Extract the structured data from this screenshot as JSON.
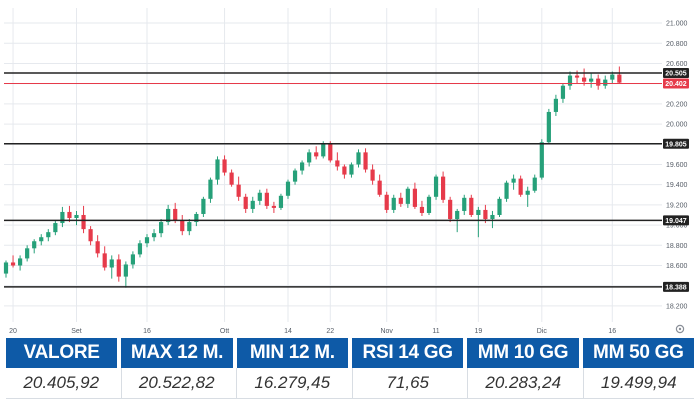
{
  "chart_data": {
    "type": "candlestick",
    "y_axis": {
      "position": "right",
      "range": [
        18.1,
        21.05
      ],
      "tick_labels": [
        "21.000",
        "20.800",
        "20.600",
        "20.400",
        "20.200",
        "20.000",
        "19.800",
        "19.600",
        "19.400",
        "19.200",
        "19.000",
        "18.800",
        "18.600",
        "18.400",
        "18.200"
      ],
      "tick_values": [
        21.0,
        20.8,
        20.6,
        20.4,
        20.2,
        20.0,
        19.8,
        19.6,
        19.4,
        19.2,
        19.0,
        18.8,
        18.6,
        18.4,
        18.2
      ]
    },
    "x_axis": {
      "tick_labels": [
        {
          "label": "20",
          "index": 1
        },
        {
          "label": "Set",
          "index": 10
        },
        {
          "label": "16",
          "index": 20
        },
        {
          "label": "Ott",
          "index": 31
        },
        {
          "label": "14",
          "index": 40
        },
        {
          "label": "22",
          "index": 46
        },
        {
          "label": "Nov",
          "index": 54
        },
        {
          "label": "11",
          "index": 61
        },
        {
          "label": "19",
          "index": 67
        },
        {
          "label": "Dic",
          "index": 76
        },
        {
          "label": "16",
          "index": 86
        }
      ]
    },
    "levels": [
      {
        "label": "20.505",
        "value": 20.505,
        "color": "#222222"
      },
      {
        "label": "20.402",
        "value": 20.402,
        "color": "#e63a4a"
      },
      {
        "label": "19.805",
        "value": 19.805,
        "color": "#222222"
      },
      {
        "label": "19.047",
        "value": 19.047,
        "color": "#222222"
      },
      {
        "label": "18.388",
        "value": 18.388,
        "color": "#222222"
      }
    ],
    "colors": {
      "up": "#26a079",
      "down": "#e63a4a",
      "line": "#222222",
      "grid": "#e6e9ee"
    },
    "candles": [
      [
        18.52,
        18.65,
        18.48,
        18.63
      ],
      [
        18.63,
        18.7,
        18.58,
        18.6
      ],
      [
        18.6,
        18.7,
        18.55,
        18.67
      ],
      [
        18.67,
        18.8,
        18.64,
        18.77
      ],
      [
        18.77,
        18.86,
        18.72,
        18.84
      ],
      [
        18.84,
        18.91,
        18.8,
        18.88
      ],
      [
        18.88,
        18.96,
        18.84,
        18.93
      ],
      [
        18.93,
        19.05,
        18.9,
        19.02
      ],
      [
        19.02,
        19.18,
        18.98,
        19.13
      ],
      [
        19.13,
        19.19,
        19.03,
        19.07
      ],
      [
        19.07,
        19.14,
        19.0,
        19.1
      ],
      [
        19.1,
        19.19,
        18.92,
        18.96
      ],
      [
        18.96,
        18.99,
        18.8,
        18.84
      ],
      [
        18.84,
        18.9,
        18.68,
        18.72
      ],
      [
        18.72,
        18.79,
        18.55,
        18.58
      ],
      [
        18.58,
        18.7,
        18.47,
        18.66
      ],
      [
        18.66,
        18.71,
        18.44,
        18.49
      ],
      [
        18.49,
        18.64,
        18.38,
        18.61
      ],
      [
        18.61,
        18.74,
        18.57,
        18.71
      ],
      [
        18.71,
        18.85,
        18.68,
        18.82
      ],
      [
        18.82,
        18.91,
        18.78,
        18.88
      ],
      [
        18.88,
        18.96,
        18.84,
        18.92
      ],
      [
        18.92,
        19.06,
        18.88,
        19.03
      ],
      [
        19.03,
        19.2,
        19.0,
        19.16
      ],
      [
        19.16,
        19.22,
        19.02,
        19.05
      ],
      [
        19.05,
        19.1,
        18.9,
        18.94
      ],
      [
        18.94,
        19.06,
        18.9,
        19.03
      ],
      [
        19.03,
        19.13,
        18.99,
        19.11
      ],
      [
        19.11,
        19.28,
        19.08,
        19.26
      ],
      [
        19.26,
        19.47,
        19.22,
        19.45
      ],
      [
        19.45,
        19.68,
        19.4,
        19.65
      ],
      [
        19.65,
        19.69,
        19.49,
        19.52
      ],
      [
        19.52,
        19.55,
        19.38,
        19.4
      ],
      [
        19.4,
        19.48,
        19.24,
        19.28
      ],
      [
        19.28,
        19.31,
        19.12,
        19.16
      ],
      [
        19.16,
        19.28,
        19.12,
        19.24
      ],
      [
        19.24,
        19.35,
        19.2,
        19.32
      ],
      [
        19.32,
        19.36,
        19.16,
        19.19
      ],
      [
        19.19,
        19.23,
        19.12,
        19.17
      ],
      [
        19.17,
        19.31,
        19.15,
        19.29
      ],
      [
        19.29,
        19.45,
        19.26,
        19.43
      ],
      [
        19.43,
        19.56,
        19.4,
        19.54
      ],
      [
        19.54,
        19.64,
        19.5,
        19.62
      ],
      [
        19.62,
        19.75,
        19.58,
        19.72
      ],
      [
        19.72,
        19.78,
        19.65,
        19.68
      ],
      [
        19.68,
        19.83,
        19.66,
        19.8
      ],
      [
        19.8,
        19.83,
        19.62,
        19.64
      ],
      [
        19.64,
        19.72,
        19.54,
        19.58
      ],
      [
        19.58,
        19.6,
        19.46,
        19.5
      ],
      [
        19.5,
        19.62,
        19.47,
        19.6
      ],
      [
        19.6,
        19.75,
        19.57,
        19.72
      ],
      [
        19.72,
        19.76,
        19.52,
        19.55
      ],
      [
        19.55,
        19.6,
        19.4,
        19.44
      ],
      [
        19.44,
        19.5,
        19.28,
        19.3
      ],
      [
        19.3,
        19.33,
        19.12,
        19.15
      ],
      [
        19.15,
        19.3,
        19.12,
        19.27
      ],
      [
        19.27,
        19.32,
        19.18,
        19.21
      ],
      [
        19.21,
        19.38,
        19.17,
        19.36
      ],
      [
        19.36,
        19.42,
        19.16,
        19.18
      ],
      [
        19.18,
        19.24,
        19.09,
        19.12
      ],
      [
        19.12,
        19.3,
        19.1,
        19.28
      ],
      [
        19.28,
        19.5,
        19.25,
        19.48
      ],
      [
        19.48,
        19.53,
        19.22,
        19.25
      ],
      [
        19.25,
        19.28,
        19.03,
        19.06
      ],
      [
        19.06,
        19.16,
        18.93,
        19.14
      ],
      [
        19.14,
        19.3,
        19.1,
        19.27
      ],
      [
        19.27,
        19.3,
        19.08,
        19.1
      ],
      [
        19.1,
        19.18,
        18.88,
        19.15
      ],
      [
        19.15,
        19.2,
        19.02,
        19.06
      ],
      [
        19.06,
        19.14,
        18.97,
        19.1
      ],
      [
        19.1,
        19.28,
        19.08,
        19.26
      ],
      [
        19.26,
        19.44,
        19.23,
        19.42
      ],
      [
        19.42,
        19.5,
        19.35,
        19.46
      ],
      [
        19.46,
        19.49,
        19.28,
        19.3
      ],
      [
        19.3,
        19.38,
        19.18,
        19.34
      ],
      [
        19.34,
        19.5,
        19.32,
        19.47
      ],
      [
        19.47,
        19.85,
        19.45,
        19.82
      ],
      [
        19.82,
        20.15,
        19.8,
        20.12
      ],
      [
        20.12,
        20.29,
        20.08,
        20.25
      ],
      [
        20.25,
        20.4,
        20.21,
        20.38
      ],
      [
        20.38,
        20.52,
        20.34,
        20.48
      ],
      [
        20.48,
        20.53,
        20.4,
        20.46
      ],
      [
        20.46,
        20.55,
        20.38,
        20.42
      ],
      [
        20.42,
        20.5,
        20.36,
        20.45
      ],
      [
        20.45,
        20.49,
        20.34,
        20.38
      ],
      [
        20.38,
        20.48,
        20.35,
        20.44
      ],
      [
        20.44,
        20.52,
        20.4,
        20.49
      ],
      [
        20.49,
        20.57,
        20.4,
        20.41
      ]
    ]
  },
  "stats": {
    "headers": [
      "VALORE",
      "MAX 12 M.",
      "MIN 12 M.",
      "RSI 14 GG",
      "MM 10 GG",
      "MM 50 GG"
    ],
    "values": [
      "20.405,92",
      "20.522,82",
      "16.279,45",
      "71,65",
      "20.283,24",
      "19.499,94"
    ]
  },
  "icons": {
    "settings": "gear-icon"
  }
}
